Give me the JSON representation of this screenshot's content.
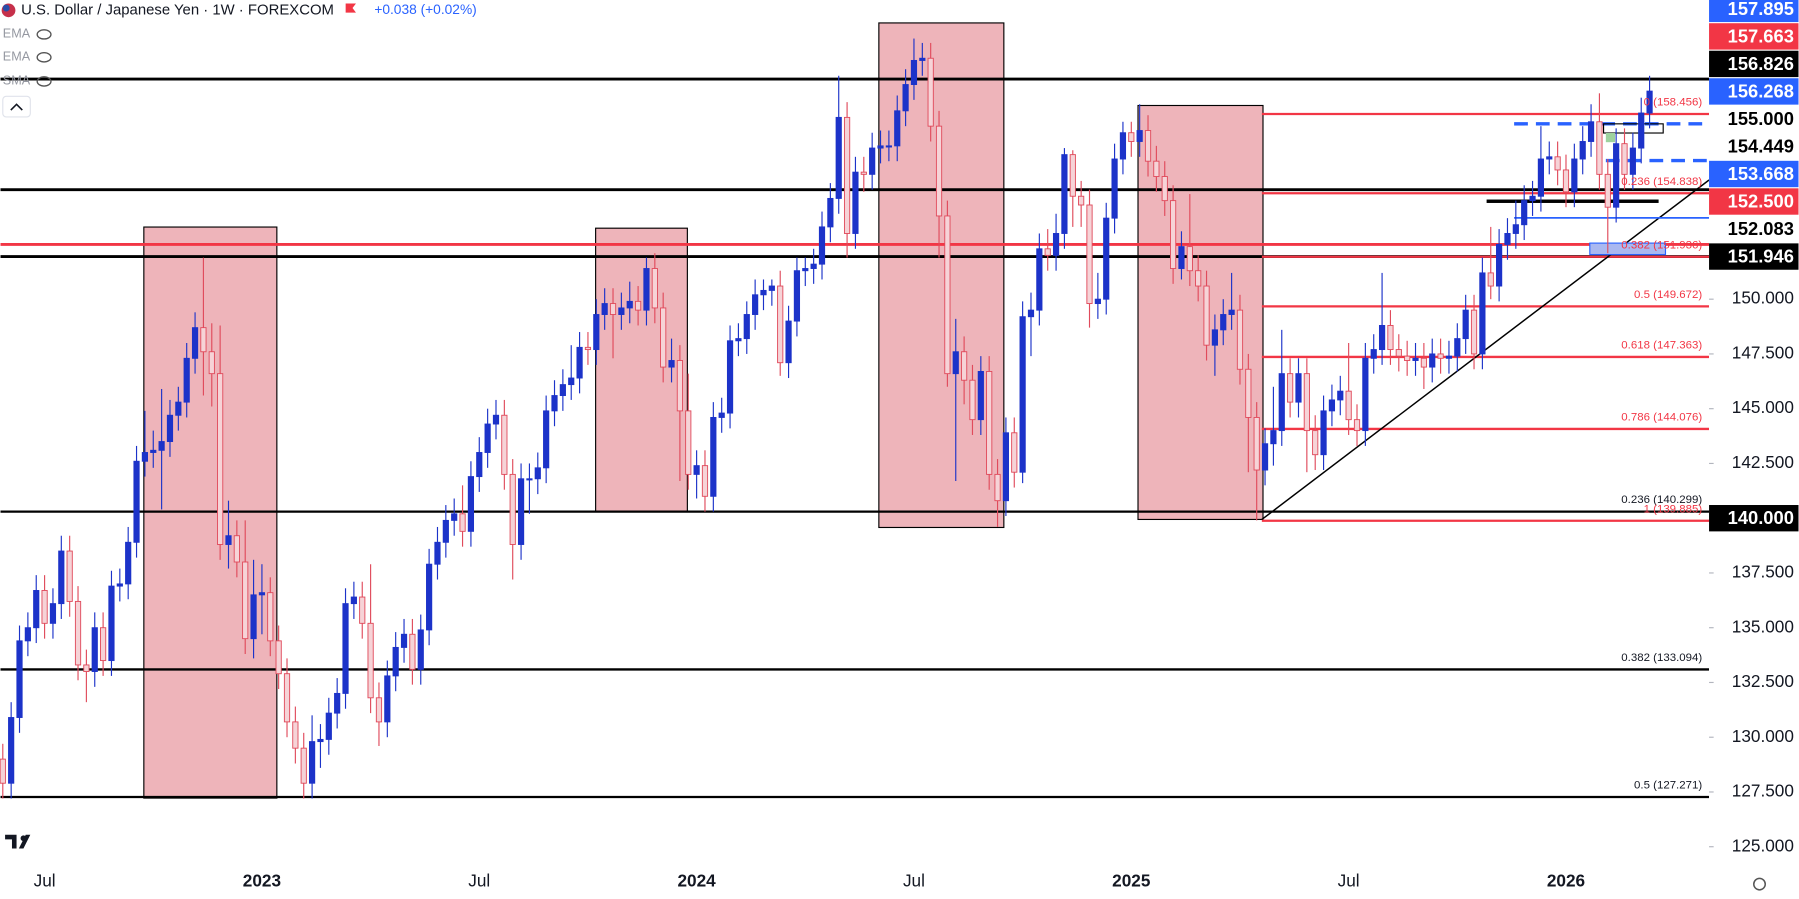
{
  "header": {
    "title": "U.S. Dollar / Japanese Yen · 1W · FOREXCOM",
    "change": "+0.038 (+0.02%)",
    "indicators": [
      "EMA",
      "EMA",
      "SMA"
    ]
  },
  "chart_data": {
    "type": "candlestick",
    "up_color": "#1c33c9",
    "down_color": "#e04b5c",
    "categories": [
      null,
      null,
      null,
      null,
      null,
      "Jul",
      null,
      null,
      null,
      null,
      null,
      null,
      null,
      null,
      null,
      null,
      null,
      null,
      null,
      null,
      null,
      null,
      null,
      null,
      null,
      null,
      null,
      null,
      null,
      null,
      null,
      "2023",
      null,
      null,
      null,
      null,
      null,
      null,
      null,
      null,
      null,
      null,
      null,
      null,
      null,
      null,
      null,
      null,
      null,
      null,
      null,
      null,
      null,
      null,
      null,
      null,
      null,
      "Jul",
      null,
      null,
      null,
      null,
      null,
      null,
      null,
      null,
      null,
      null,
      null,
      null,
      null,
      null,
      null,
      null,
      null,
      null,
      null,
      null,
      null,
      null,
      null,
      null,
      null,
      "2024",
      null,
      null,
      null,
      null,
      null,
      null,
      null,
      null,
      null,
      null,
      null,
      null,
      null,
      null,
      null,
      null,
      null,
      null,
      null,
      null,
      null,
      null,
      null,
      null,
      null,
      "Jul",
      null,
      null,
      null,
      null,
      null,
      null,
      null,
      null,
      null,
      null,
      null,
      null,
      null,
      null,
      null,
      null,
      null,
      null,
      null,
      null,
      null,
      null,
      null,
      null,
      null,
      "2025",
      null,
      null,
      null,
      null,
      null,
      null,
      null,
      null,
      null,
      null,
      null,
      null,
      null,
      null,
      null,
      null,
      null,
      null,
      null,
      null,
      null,
      null,
      null,
      null,
      null,
      "Jul",
      null,
      null,
      null,
      null,
      null,
      null,
      null,
      null,
      null,
      null,
      null,
      null,
      null,
      null,
      null,
      null,
      null,
      null,
      null,
      null,
      null,
      null,
      null,
      null,
      null,
      "2026",
      null,
      null,
      null,
      null,
      null,
      null,
      null,
      null,
      null,
      null
    ],
    "open": [
      129.0,
      127.9,
      130.9,
      134.4,
      135.0,
      136.7,
      135.2,
      136.1,
      138.5,
      136.2,
      133.3,
      133.0,
      135.0,
      133.5,
      136.9,
      137.0,
      138.9,
      142.6,
      143.0,
      143.1,
      143.5,
      144.7,
      145.3,
      147.3,
      148.7,
      147.6,
      146.6,
      138.8,
      139.2,
      138.0,
      134.5,
      136.5,
      136.6,
      134.4,
      132.9,
      130.7,
      129.5,
      127.9,
      129.8,
      129.9,
      131.1,
      132.0,
      136.1,
      136.4,
      135.2,
      131.8,
      130.7,
      132.8,
      134.1,
      134.7,
      133.1,
      134.9,
      137.9,
      138.9,
      139.9,
      140.2,
      139.4,
      141.9,
      143.0,
      144.3,
      144.7,
      142.0,
      138.8,
      141.8,
      141.8,
      142.3,
      144.9,
      145.6,
      146.1,
      146.4,
      147.8,
      147.7,
      149.3,
      149.8,
      149.3,
      149.6,
      149.9,
      149.5,
      151.4,
      149.6,
      146.9,
      147.2,
      144.9,
      142.0,
      142.4,
      141.0,
      144.6,
      144.8,
      148.1,
      148.2,
      149.3,
      150.2,
      150.4,
      150.6,
      147.1,
      149.0,
      151.3,
      151.4,
      151.6,
      153.3,
      154.6,
      158.3,
      153.0,
      155.8,
      155.7,
      156.9,
      157.0,
      157.0,
      158.6,
      159.8,
      160.9,
      161.0,
      157.9,
      153.8,
      146.6,
      147.6,
      146.3,
      144.5,
      146.7,
      142.0,
      140.8,
      143.9,
      142.1,
      149.2,
      149.5,
      152.3,
      152.0,
      153.0,
      156.6,
      154.7,
      154.3,
      149.8,
      150.0,
      153.7,
      156.4,
      157.6,
      157.2,
      157.7,
      156.3,
      155.6,
      154.5,
      151.4,
      152.4,
      151.3,
      150.6,
      147.9,
      148.6,
      149.3,
      149.5,
      146.8,
      144.6,
      142.2,
      143.4,
      144.0,
      146.6,
      145.3,
      146.6,
      144.0,
      142.9,
      144.9,
      145.4,
      145.8,
      144.5,
      144.0,
      147.3,
      147.7,
      148.8,
      147.7,
      147.4,
      147.2,
      147.3,
      146.9,
      147.5,
      147.3,
      147.4,
      148.2,
      149.5,
      147.5,
      151.2,
      150.6,
      152.5,
      153.0,
      153.4,
      154.5,
      154.7,
      156.4,
      156.5,
      155.9,
      154.9,
      156.4,
      157.2,
      158.1,
      155.7,
      154.2,
      157.1,
      155.7,
      156.9,
      158.5
    ],
    "high": [
      129.7,
      131.6,
      135.1,
      135.7,
      137.4,
      137.4,
      136.8,
      139.2,
      139.2,
      136.9,
      134.0,
      135.7,
      135.7,
      137.6,
      137.7,
      139.6,
      143.3,
      144.9,
      144.0,
      145.9,
      145.4,
      146.0,
      148.0,
      149.4,
      151.9,
      148.9,
      148.8,
      140.8,
      139.9,
      139.9,
      138.1,
      137.9,
      137.3,
      135.1,
      133.6,
      131.4,
      130.2,
      131.0,
      130.6,
      131.8,
      132.7,
      136.8,
      137.1,
      137.1,
      137.9,
      132.5,
      133.5,
      134.8,
      135.4,
      135.4,
      135.6,
      138.6,
      139.6,
      140.6,
      140.9,
      141.5,
      142.6,
      143.7,
      145.0,
      145.4,
      145.4,
      142.7,
      142.5,
      142.5,
      143.0,
      145.6,
      146.3,
      146.8,
      147.9,
      148.5,
      148.5,
      150.0,
      150.5,
      150.5,
      150.3,
      150.8,
      150.6,
      151.9,
      152.1,
      150.3,
      148.2,
      147.9,
      146.6,
      143.1,
      143.1,
      145.3,
      145.5,
      148.8,
      148.9,
      149.9,
      150.9,
      150.9,
      150.9,
      151.3,
      149.7,
      151.9,
      151.9,
      152.3,
      154.0,
      155.3,
      160.2,
      159.0,
      156.5,
      156.5,
      157.6,
      157.7,
      157.7,
      159.3,
      160.5,
      161.9,
      161.7,
      161.7,
      158.6,
      154.5,
      149.1,
      148.3,
      147.0,
      147.4,
      147.4,
      142.7,
      144.6,
      144.6,
      149.9,
      150.3,
      153.0,
      153.2,
      153.9,
      156.9,
      156.8,
      155.4,
      155.0,
      151.2,
      154.4,
      157.1,
      158.1,
      158.1,
      158.9,
      158.4,
      157.0,
      156.3,
      155.2,
      153.1,
      154.8,
      152.0,
      151.3,
      149.3,
      150.0,
      151.2,
      150.2,
      147.5,
      145.3,
      144.1,
      146.0,
      148.6,
      147.3,
      147.3,
      147.3,
      144.7,
      145.6,
      146.1,
      146.5,
      148.0,
      145.2,
      148.0,
      148.4,
      151.2,
      149.5,
      148.4,
      148.1,
      148.0,
      148.0,
      148.2,
      148.2,
      148.1,
      148.9,
      150.2,
      150.2,
      151.9,
      153.3,
      153.2,
      153.7,
      154.5,
      155.2,
      155.4,
      157.9,
      157.2,
      157.2,
      156.6,
      157.1,
      157.9,
      158.9,
      159.4,
      156.4,
      157.8,
      157.8,
      157.6,
      159.2,
      160.2
    ],
    "low": [
      127.2,
      127.2,
      130.2,
      133.7,
      134.3,
      134.5,
      134.5,
      135.4,
      135.5,
      132.6,
      131.6,
      132.3,
      132.8,
      132.8,
      136.2,
      136.3,
      138.2,
      141.9,
      142.3,
      140.4,
      142.8,
      144.0,
      144.6,
      146.6,
      145.6,
      145.1,
      138.1,
      137.7,
      137.3,
      133.8,
      133.6,
      134.7,
      133.7,
      132.2,
      130.0,
      128.8,
      127.2,
      127.2,
      128.6,
      129.2,
      130.4,
      131.3,
      135.4,
      134.5,
      131.1,
      129.6,
      130.0,
      132.1,
      133.4,
      132.4,
      132.4,
      134.2,
      137.2,
      138.2,
      139.2,
      138.7,
      138.7,
      141.2,
      142.3,
      143.6,
      141.3,
      137.2,
      138.1,
      140.2,
      141.1,
      141.6,
      144.2,
      144.9,
      145.4,
      145.7,
      147.0,
      147.0,
      148.6,
      147.3,
      148.6,
      148.9,
      148.8,
      148.8,
      148.9,
      146.2,
      146.2,
      141.7,
      141.3,
      140.9,
      140.3,
      140.3,
      143.9,
      144.1,
      147.4,
      147.5,
      148.6,
      149.5,
      149.7,
      146.5,
      146.4,
      148.3,
      150.6,
      150.7,
      150.9,
      152.6,
      153.9,
      151.9,
      152.3,
      154.9,
      155.0,
      156.2,
      156.3,
      156.3,
      157.9,
      159.1,
      160.2,
      157.2,
      151.9,
      146.0,
      141.7,
      145.2,
      143.8,
      143.8,
      141.3,
      139.6,
      140.1,
      141.4,
      141.6,
      147.4,
      148.8,
      151.3,
      151.3,
      152.3,
      153.3,
      153.3,
      148.7,
      149.1,
      149.3,
      153.0,
      155.7,
      156.5,
      156.5,
      155.6,
      154.9,
      153.8,
      150.7,
      150.9,
      150.6,
      149.9,
      147.2,
      146.5,
      147.9,
      148.6,
      146.1,
      142.1,
      139.9,
      141.5,
      142.4,
      143.3,
      144.6,
      144.6,
      142.1,
      142.2,
      142.2,
      144.2,
      144.7,
      143.8,
      143.3,
      143.3,
      146.6,
      147.0,
      147.0,
      146.7,
      146.5,
      146.5,
      145.9,
      146.2,
      146.6,
      146.6,
      146.7,
      147.5,
      146.8,
      146.8,
      150.0,
      149.9,
      151.8,
      152.3,
      152.7,
      153.8,
      154.0,
      155.7,
      155.2,
      154.2,
      154.2,
      155.7,
      156.5,
      155.0,
      152.1,
      153.5,
      155.0,
      155.0,
      156.2,
      157.8
    ],
    "close": [
      127.9,
      130.9,
      134.4,
      135.0,
      136.7,
      135.2,
      136.1,
      138.5,
      136.2,
      133.3,
      133.0,
      135.0,
      133.5,
      136.9,
      137.0,
      138.9,
      142.6,
      143.0,
      143.1,
      143.5,
      144.7,
      145.3,
      147.3,
      148.7,
      147.6,
      146.6,
      138.8,
      139.2,
      138.0,
      134.5,
      136.5,
      136.6,
      134.4,
      132.9,
      130.7,
      129.5,
      127.9,
      129.8,
      129.9,
      131.1,
      132.0,
      136.1,
      136.4,
      135.2,
      131.8,
      130.7,
      132.8,
      134.1,
      134.7,
      133.1,
      134.9,
      137.9,
      138.9,
      139.9,
      140.2,
      139.4,
      141.9,
      143.0,
      144.3,
      144.7,
      142.0,
      138.8,
      141.8,
      141.8,
      142.3,
      144.9,
      145.6,
      146.1,
      146.4,
      147.8,
      147.7,
      149.3,
      149.8,
      149.3,
      149.6,
      149.9,
      149.5,
      151.4,
      149.6,
      146.9,
      147.2,
      144.9,
      142.0,
      142.4,
      141.0,
      144.6,
      144.8,
      148.1,
      148.2,
      149.3,
      150.2,
      150.4,
      150.6,
      147.1,
      149.0,
      151.3,
      151.4,
      151.6,
      153.3,
      154.6,
      158.3,
      153.0,
      155.8,
      155.7,
      156.9,
      157.0,
      157.0,
      158.6,
      159.8,
      160.9,
      161.0,
      157.9,
      153.8,
      146.6,
      147.6,
      146.3,
      144.5,
      146.7,
      142.0,
      140.8,
      143.9,
      142.1,
      149.2,
      149.5,
      152.3,
      152.0,
      153.0,
      156.6,
      154.7,
      154.3,
      149.8,
      150.0,
      153.7,
      156.4,
      157.6,
      157.2,
      157.7,
      156.3,
      155.6,
      154.5,
      151.4,
      152.4,
      151.3,
      150.6,
      147.9,
      148.6,
      149.3,
      149.5,
      146.8,
      144.6,
      142.2,
      143.4,
      144.0,
      146.6,
      145.3,
      146.6,
      144.0,
      142.9,
      144.9,
      145.4,
      145.8,
      144.5,
      144.0,
      147.3,
      147.7,
      148.8,
      147.7,
      147.4,
      147.2,
      147.3,
      146.9,
      147.5,
      147.3,
      147.4,
      148.2,
      149.5,
      147.5,
      151.2,
      150.6,
      152.5,
      153.0,
      153.4,
      154.5,
      154.7,
      156.4,
      156.5,
      155.9,
      154.9,
      156.4,
      157.2,
      158.1,
      155.7,
      154.2,
      157.1,
      155.7,
      156.9,
      158.5,
      159.5
    ],
    "ylim": [
      123.87,
      163.66
    ],
    "yticks": [
      {
        "value": 125,
        "label": "125.000"
      },
      {
        "value": 127.5,
        "label": "127.500"
      },
      {
        "value": 130,
        "label": "130.000"
      },
      {
        "value": 132.5,
        "label": "132.500"
      },
      {
        "value": 135,
        "label": "135.000"
      },
      {
        "value": 137.5,
        "label": "137.500"
      },
      {
        "value": 142.5,
        "label": "142.500"
      },
      {
        "value": 145,
        "label": "145.000"
      },
      {
        "value": 147.5,
        "label": "147.500"
      },
      {
        "value": 150,
        "label": "150.000"
      }
    ],
    "levels": [
      {
        "value": 160.05,
        "color": "#000000"
      },
      {
        "value": 155,
        "color": "#000000"
      },
      {
        "value": 152.5,
        "color": "#f23645"
      },
      {
        "value": 151.946,
        "color": "#000000"
      }
    ],
    "fib_left": [
      {
        "value": 140.299,
        "label": "0.236 (140.299)"
      },
      {
        "value": 133.094,
        "label": "0.382 (133.094)"
      },
      {
        "value": 127.271,
        "label": "0.5 (127.271)"
      }
    ],
    "fib_right": [
      {
        "value": 158.456,
        "label": "0 (158.456)"
      },
      {
        "value": 154.838,
        "label": "0.236 (154.838)"
      },
      {
        "value": 151.936,
        "label": "0.382 (151.936)"
      },
      {
        "value": 149.672,
        "label": "0.5 (149.672)"
      },
      {
        "value": 147.363,
        "label": "0.618 (147.363)"
      },
      {
        "value": 144.076,
        "label": "0.786 (144.076)"
      },
      {
        "value": 139.885,
        "label": "1 (139.885)"
      }
    ],
    "price_labels": [
      {
        "value": 157.895,
        "label": "157.895",
        "color": "#2962ff",
        "text_color": "#ffffff"
      },
      {
        "value": 157.663,
        "label": "157.663",
        "color": "#f23645",
        "text_color": "#ffffff"
      },
      {
        "value": 156.826,
        "label": "156.826",
        "color": "#000000",
        "text_color": "#ffffff"
      },
      {
        "value": 156.268,
        "label": "156.268",
        "color": "#2962ff",
        "text_color": "#ffffff"
      },
      {
        "value": 155,
        "label": "155.000",
        "color": "#ffffff",
        "text_color": "#000000"
      },
      {
        "value": 154.449,
        "label": "154.449",
        "color": "#ffffff",
        "text_color": "#000000"
      },
      {
        "value": 153.668,
        "label": "153.668",
        "color": "#2962ff",
        "text_color": "#ffffff"
      },
      {
        "value": 152.5,
        "label": "152.500",
        "color": "#f23645",
        "text_color": "#ffffff"
      },
      {
        "value": 152.083,
        "label": "152.083",
        "color": "#ffffff",
        "text_color": "#000000"
      },
      {
        "value": 151.946,
        "label": "151.946",
        "color": "#000000",
        "text_color": "#ffffff"
      },
      {
        "value": 140,
        "label": "140.000",
        "color": "#000000",
        "text_color": "#ffffff"
      }
    ]
  }
}
